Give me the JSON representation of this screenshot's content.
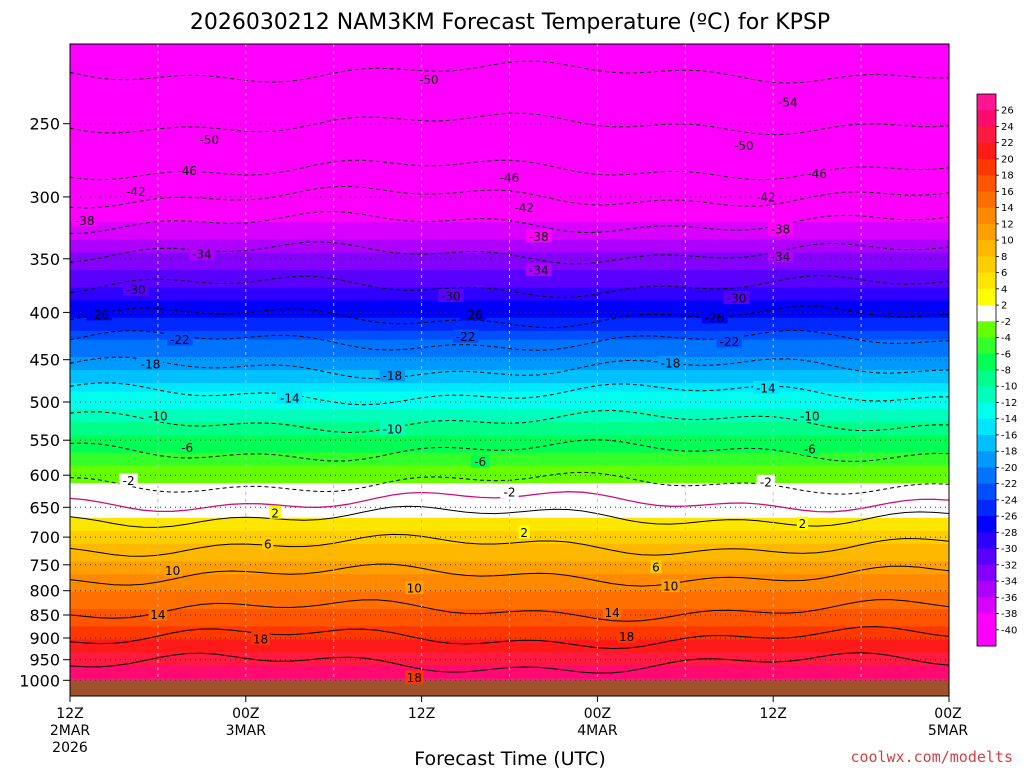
{
  "chart_data": {
    "type": "heatmap",
    "title": "2026030212 NAM3KM Forecast Temperature (ºC) for KPSP",
    "xlabel": "Forecast Time (UTC)",
    "ylabel": "",
    "credit": "coolwx.com/modelts",
    "y_axis": {
      "scale": "log-pressure",
      "range": [
        1040,
        205
      ],
      "ticks": [
        250,
        300,
        350,
        400,
        450,
        500,
        550,
        600,
        650,
        700,
        750,
        800,
        850,
        900,
        950,
        1000
      ]
    },
    "x_axis": {
      "range_hours": [
        0,
        60
      ],
      "ticks": [
        {
          "h": 0,
          "l1": "12Z",
          "l2": "2MAR",
          "l3": "2026"
        },
        {
          "h": 12,
          "l1": "00Z",
          "l2": "3MAR",
          "l3": ""
        },
        {
          "h": 24,
          "l1": "12Z",
          "l2": "",
          "l3": ""
        },
        {
          "h": 36,
          "l1": "00Z",
          "l2": "4MAR",
          "l3": ""
        },
        {
          "h": 48,
          "l1": "12Z",
          "l2": "",
          "l3": ""
        },
        {
          "h": 60,
          "l1": "00Z",
          "l2": "5MAR",
          "l3": ""
        }
      ]
    },
    "grid": true,
    "surface_pressure_mb": 1000,
    "colorbar": {
      "labels": [
        "26",
        "24",
        "22",
        "20",
        "18",
        "16",
        "14",
        "12",
        "10",
        "8",
        "6",
        "4",
        "2",
        "-2",
        "-4",
        "-6",
        "-8",
        "-10",
        "-12",
        "-14",
        "-16",
        "-18",
        "-20",
        "-22",
        "-24",
        "-26",
        "-28",
        "-30",
        "-32",
        "-34",
        "-36",
        "-38",
        "-40"
      ],
      "colors": [
        "#ff1493",
        "#ff0a6e",
        "#ff1a40",
        "#ff1a1a",
        "#ff3800",
        "#ff5400",
        "#ff6e00",
        "#ff8a00",
        "#ffa000",
        "#ffb800",
        "#ffce00",
        "#ffe600",
        "#ffff00",
        "#ffffff",
        "#66ff00",
        "#33ff2a",
        "#00ff55",
        "#00ff88",
        "#00ffbb",
        "#00ffee",
        "#00e6ff",
        "#00c0ff",
        "#009aff",
        "#0074ff",
        "#004eff",
        "#0028ff",
        "#0000ff",
        "#3000ff",
        "#5a00ff",
        "#8400ff",
        "#ae00ff",
        "#d800ff",
        "#ff00ff",
        "#ff00ff"
      ]
    },
    "isotherm_labels": [
      {
        "t": "-50",
        "h": 24.5,
        "p": 224
      },
      {
        "t": "-50",
        "h": 9.5,
        "p": 260
      },
      {
        "t": "-50",
        "h": 46,
        "p": 264
      },
      {
        "t": "-54",
        "h": 49,
        "p": 237
      },
      {
        "t": "-46",
        "h": 8,
        "p": 281
      },
      {
        "t": "-46",
        "h": 30,
        "p": 286
      },
      {
        "t": "-46",
        "h": 51,
        "p": 283
      },
      {
        "t": "-42",
        "h": 4.5,
        "p": 296
      },
      {
        "t": "-42",
        "h": 31,
        "p": 308
      },
      {
        "t": "-42",
        "h": 47.5,
        "p": 300
      },
      {
        "t": "-38",
        "h": 1,
        "p": 318
      },
      {
        "t": "-38",
        "h": 32,
        "p": 331
      },
      {
        "t": "-38",
        "h": 48.5,
        "p": 325
      },
      {
        "t": "-34",
        "h": 9,
        "p": 346
      },
      {
        "t": "-34",
        "h": 32,
        "p": 360
      },
      {
        "t": "-34",
        "h": 48.5,
        "p": 348
      },
      {
        "t": "-30",
        "h": 4.5,
        "p": 378
      },
      {
        "t": "-30",
        "h": 26,
        "p": 384
      },
      {
        "t": "-30",
        "h": 45.5,
        "p": 386
      },
      {
        "t": "-26",
        "h": 2,
        "p": 402
      },
      {
        "t": "-26",
        "h": 27.5,
        "p": 402
      },
      {
        "t": "-26",
        "h": 44,
        "p": 405
      },
      {
        "t": "-22",
        "h": 7.5,
        "p": 428
      },
      {
        "t": "-22",
        "h": 27,
        "p": 425
      },
      {
        "t": "-22",
        "h": 45,
        "p": 430
      },
      {
        "t": "-18",
        "h": 5.5,
        "p": 455
      },
      {
        "t": "-18",
        "h": 22,
        "p": 468
      },
      {
        "t": "-18",
        "h": 41,
        "p": 454
      },
      {
        "t": "-14",
        "h": 15,
        "p": 495
      },
      {
        "t": "-14",
        "h": 47.5,
        "p": 483
      },
      {
        "t": "-10",
        "h": 6,
        "p": 518
      },
      {
        "t": "-10",
        "h": 22,
        "p": 535
      },
      {
        "t": "-10",
        "h": 50.5,
        "p": 518
      },
      {
        "t": "-6",
        "h": 8,
        "p": 560
      },
      {
        "t": "-6",
        "h": 28,
        "p": 580
      },
      {
        "t": "-6",
        "h": 50.5,
        "p": 562
      },
      {
        "t": "-2",
        "h": 4,
        "p": 608
      },
      {
        "t": "-2",
        "h": 30,
        "p": 626
      },
      {
        "t": "-2",
        "h": 47.5,
        "p": 610
      },
      {
        "t": "2",
        "h": 14,
        "p": 659
      },
      {
        "t": "2",
        "h": 31,
        "p": 692
      },
      {
        "t": "2",
        "h": 50,
        "p": 677
      },
      {
        "t": "6",
        "h": 13.5,
        "p": 712
      },
      {
        "t": "6",
        "h": 40,
        "p": 754
      },
      {
        "t": "10",
        "h": 7,
        "p": 761
      },
      {
        "t": "10",
        "h": 23.5,
        "p": 795
      },
      {
        "t": "10",
        "h": 41,
        "p": 791
      },
      {
        "t": "14",
        "h": 6,
        "p": 849
      },
      {
        "t": "14",
        "h": 37,
        "p": 845
      },
      {
        "t": "18",
        "h": 13,
        "p": 902
      },
      {
        "t": "18",
        "h": 38,
        "p": 897
      },
      {
        "t": "18",
        "h": 23.5,
        "p": 993
      }
    ]
  }
}
